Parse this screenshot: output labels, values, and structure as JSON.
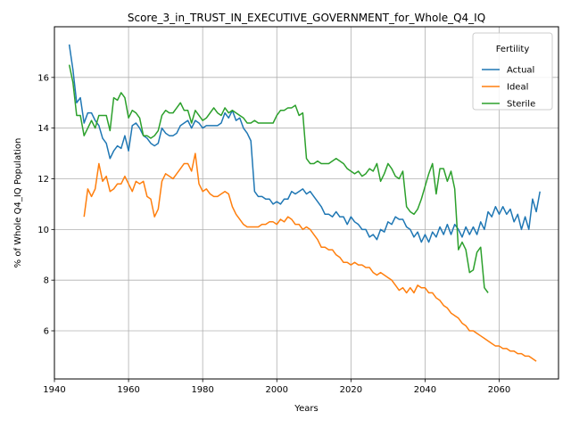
{
  "chart_data": {
    "type": "line",
    "title": "Score_3_in_TRUST_IN_EXECUTIVE_GOVERNMENT_for_Whole_Q4_IQ",
    "xlabel": "Years",
    "ylabel": "% of Whole Q4_IQ Population",
    "xlim": [
      1940,
      2076
    ],
    "ylim": [
      4.1,
      18.0
    ],
    "xticks": [
      1940,
      1960,
      1980,
      2000,
      2020,
      2040,
      2060
    ],
    "yticks": [
      6,
      8,
      10,
      12,
      14,
      16
    ],
    "grid": true,
    "legend": {
      "title": "Fertility",
      "position": "top-right"
    },
    "series": [
      {
        "name": "Actual",
        "color": "#1f77b4",
        "x_start": 1944,
        "values": [
          17.3,
          16.3,
          15.0,
          15.2,
          14.2,
          14.6,
          14.6,
          14.3,
          14.1,
          13.6,
          13.4,
          12.8,
          13.1,
          13.3,
          13.2,
          13.7,
          13.1,
          14.1,
          14.2,
          14.0,
          13.7,
          13.6,
          13.4,
          13.3,
          13.4,
          14.0,
          13.8,
          13.7,
          13.7,
          13.8,
          14.1,
          14.2,
          14.3,
          14.0,
          14.3,
          14.2,
          14.0,
          14.1,
          14.1,
          14.1,
          14.1,
          14.2,
          14.6,
          14.4,
          14.7,
          14.3,
          14.4,
          14.0,
          13.8,
          13.5,
          11.5,
          11.3,
          11.3,
          11.2,
          11.2,
          11.0,
          11.1,
          11.0,
          11.2,
          11.2,
          11.5,
          11.4,
          11.5,
          11.6,
          11.4,
          11.5,
          11.3,
          11.1,
          10.9,
          10.6,
          10.6,
          10.5,
          10.7,
          10.5,
          10.5,
          10.2,
          10.5,
          10.3,
          10.2,
          10.0,
          10.0,
          9.7,
          9.8,
          9.6,
          10.0,
          9.9,
          10.3,
          10.2,
          10.5,
          10.4,
          10.4,
          10.1,
          10.0,
          9.7,
          9.9,
          9.5,
          9.8,
          9.5,
          9.9,
          9.7,
          10.1,
          9.8,
          10.2,
          9.8,
          10.2,
          10.0,
          9.7,
          10.1,
          9.8,
          10.1,
          9.8,
          10.3,
          10.0,
          10.7,
          10.5,
          10.9,
          10.6,
          10.9,
          10.6,
          10.8,
          10.3,
          10.6,
          10.0,
          10.5,
          10.0,
          11.2,
          10.7,
          11.5
        ]
      },
      {
        "name": "Ideal",
        "color": "#ff7f0e",
        "x_start": 1948,
        "values": [
          10.5,
          11.6,
          11.3,
          11.6,
          12.6,
          11.9,
          12.1,
          11.5,
          11.6,
          11.8,
          11.8,
          12.1,
          11.8,
          11.5,
          11.9,
          11.8,
          11.9,
          11.3,
          11.2,
          10.5,
          10.8,
          11.9,
          12.2,
          12.1,
          12.0,
          12.2,
          12.4,
          12.6,
          12.6,
          12.3,
          13.0,
          11.8,
          11.5,
          11.6,
          11.4,
          11.3,
          11.3,
          11.4,
          11.5,
          11.4,
          10.9,
          10.6,
          10.4,
          10.2,
          10.1,
          10.1,
          10.1,
          10.1,
          10.2,
          10.2,
          10.3,
          10.3,
          10.2,
          10.4,
          10.3,
          10.5,
          10.4,
          10.2,
          10.2,
          10.0,
          10.1,
          10.0,
          9.8,
          9.6,
          9.3,
          9.3,
          9.2,
          9.2,
          9.0,
          8.9,
          8.7,
          8.7,
          8.6,
          8.7,
          8.6,
          8.6,
          8.5,
          8.5,
          8.3,
          8.2,
          8.3,
          8.2,
          8.1,
          8.0,
          7.8,
          7.6,
          7.7,
          7.5,
          7.7,
          7.5,
          7.8,
          7.7,
          7.7,
          7.5,
          7.5,
          7.3,
          7.2,
          7.0,
          6.9,
          6.7,
          6.6,
          6.5,
          6.3,
          6.2,
          6.0,
          6.0,
          5.9,
          5.8,
          5.7,
          5.6,
          5.5,
          5.4,
          5.4,
          5.3,
          5.3,
          5.2,
          5.2,
          5.1,
          5.1,
          5.0,
          5.0,
          4.9,
          4.8
        ]
      },
      {
        "name": "Sterile",
        "color": "#2ca02c",
        "x_start": 1944,
        "values": [
          16.5,
          15.8,
          14.5,
          14.5,
          13.7,
          14.0,
          14.3,
          14.0,
          14.5,
          14.5,
          14.5,
          13.9,
          15.2,
          15.1,
          15.4,
          15.2,
          14.4,
          14.7,
          14.6,
          14.4,
          13.7,
          13.7,
          13.6,
          13.7,
          13.9,
          14.5,
          14.7,
          14.6,
          14.6,
          14.8,
          15.0,
          14.7,
          14.7,
          14.2,
          14.7,
          14.5,
          14.3,
          14.4,
          14.6,
          14.8,
          14.6,
          14.5,
          14.8,
          14.6,
          14.7,
          14.6,
          14.5,
          14.4,
          14.2,
          14.2,
          14.3,
          14.2,
          14.2,
          14.2,
          14.2,
          14.2,
          14.5,
          14.7,
          14.7,
          14.8,
          14.8,
          14.9,
          14.5,
          14.6,
          12.8,
          12.6,
          12.6,
          12.7,
          12.6,
          12.6,
          12.6,
          12.7,
          12.8,
          12.7,
          12.6,
          12.4,
          12.3,
          12.2,
          12.3,
          12.1,
          12.2,
          12.4,
          12.3,
          12.6,
          11.9,
          12.2,
          12.6,
          12.4,
          12.1,
          12.0,
          12.3,
          10.9,
          10.7,
          10.6,
          10.8,
          11.2,
          11.7,
          12.2,
          12.6,
          11.4,
          12.4,
          12.4,
          11.9,
          12.3,
          11.6,
          9.2,
          9.5,
          9.2,
          8.3,
          8.4,
          9.1,
          9.3,
          7.7,
          7.5
        ]
      }
    ]
  }
}
